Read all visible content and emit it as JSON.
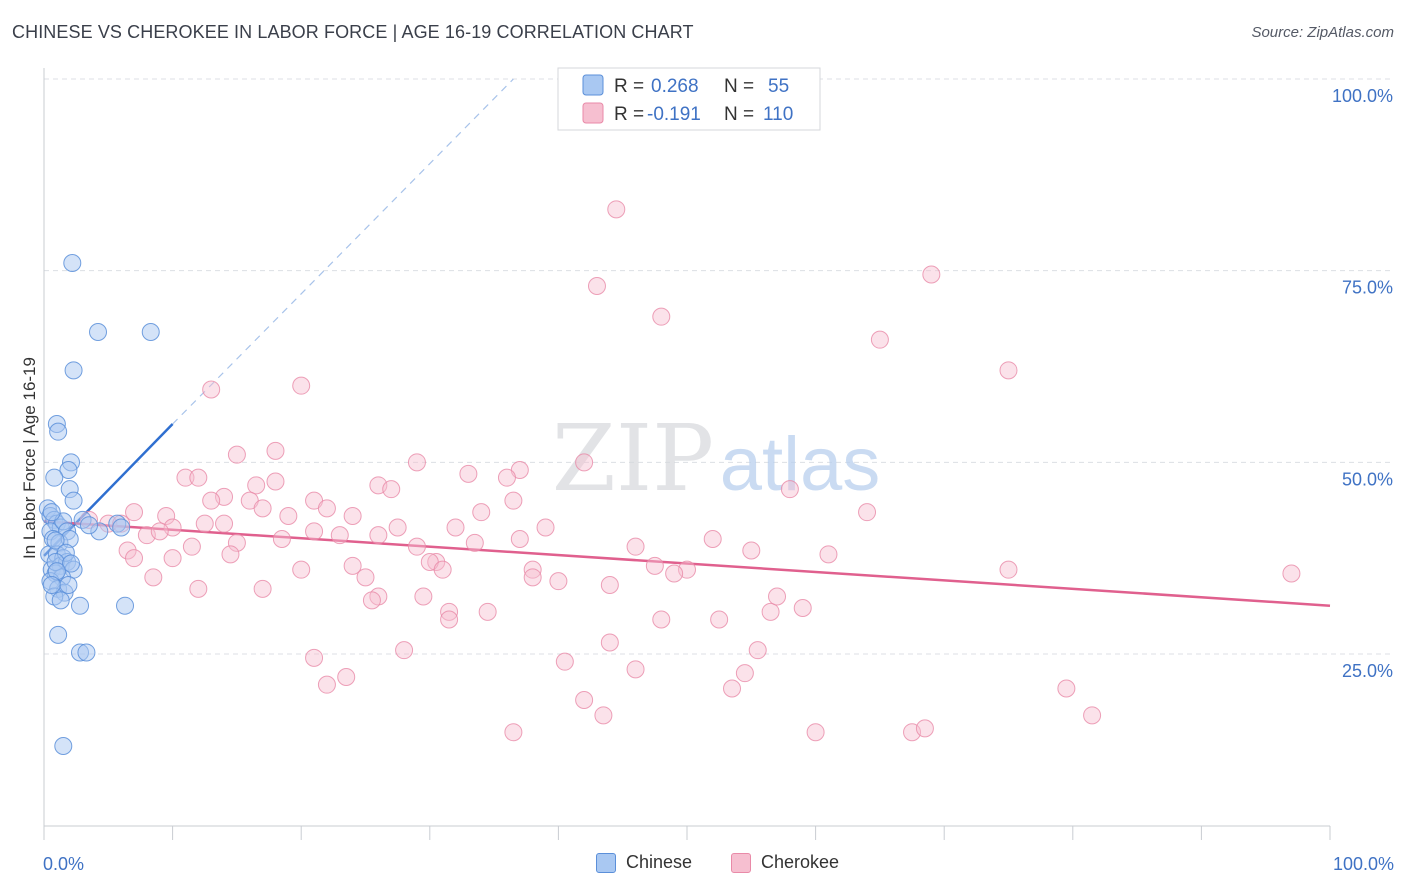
{
  "header": {
    "title": "CHINESE VS CHEROKEE IN LABOR FORCE | AGE 16-19 CORRELATION CHART",
    "source": "Source: ZipAtlas.com"
  },
  "watermark": {
    "zip": "ZIP",
    "atlas": "atlas"
  },
  "colors": {
    "chinese_fill": "#a9c8f2",
    "chinese_stroke": "#5b8fd9",
    "chinese_line": "#2f6fd0",
    "cherokee_fill": "#f6bfd0",
    "cherokee_stroke": "#e98aa8",
    "cherokee_line": "#e0608e",
    "axis_label": "#3f72c4"
  },
  "legend": {
    "chinese": {
      "r_label": "R = ",
      "r_value": "0.268",
      "n_label": "N = ",
      "n_value": "55"
    },
    "cherokee": {
      "r_label": "R = ",
      "r_value": "-0.191",
      "n_label": "N = ",
      "n_value": "110"
    }
  },
  "chart_data": {
    "type": "scatter",
    "title": "CHINESE VS CHEROKEE IN LABOR FORCE | AGE 16-19 CORRELATION CHART",
    "xlabel": "",
    "ylabel": "In Labor Force | Age 16-19",
    "xlim": [
      0,
      100
    ],
    "ylim": [
      0,
      105
    ],
    "x_tick_labels": [
      "0.0%",
      "100.0%"
    ],
    "y_ticks": [
      25,
      50,
      75,
      100
    ],
    "y_tick_labels": [
      "25.0%",
      "50.0%",
      "75.0%",
      "100.0%"
    ],
    "grid": true,
    "legend_position": "top-center",
    "series": [
      {
        "name": "Chinese",
        "r": 0.268,
        "n": 55,
        "trend": {
          "x": [
            0.0,
            10.0
          ],
          "y": [
            37.8,
            55.0
          ],
          "dashed_to": [
            36.5,
            100.0
          ]
        },
        "points": [
          [
            0.3,
            44.0
          ],
          [
            0.5,
            43.0
          ],
          [
            0.8,
            42.5
          ],
          [
            1.0,
            42.0
          ],
          [
            1.3,
            41.5
          ],
          [
            0.5,
            41.0
          ],
          [
            1.5,
            42.3
          ],
          [
            1.8,
            41.0
          ],
          [
            0.7,
            40.0
          ],
          [
            1.2,
            39.5
          ],
          [
            2.0,
            40.0
          ],
          [
            0.4,
            38.0
          ],
          [
            1.0,
            38.0
          ],
          [
            1.5,
            37.5
          ],
          [
            0.6,
            36.0
          ],
          [
            1.3,
            36.5
          ],
          [
            1.8,
            37.0
          ],
          [
            2.3,
            36.0
          ],
          [
            0.9,
            35.5
          ],
          [
            1.4,
            35.0
          ],
          [
            0.5,
            34.5
          ],
          [
            1.1,
            33.5
          ],
          [
            1.6,
            33.0
          ],
          [
            1.9,
            34.0
          ],
          [
            0.8,
            32.5
          ],
          [
            1.3,
            32.0
          ],
          [
            2.8,
            31.3
          ],
          [
            6.3,
            31.3
          ],
          [
            1.1,
            27.5
          ],
          [
            2.8,
            25.2
          ],
          [
            3.3,
            25.2
          ],
          [
            1.5,
            13.0
          ],
          [
            2.2,
            76.0
          ],
          [
            4.2,
            67.0
          ],
          [
            8.3,
            67.0
          ],
          [
            2.3,
            62.0
          ],
          [
            1.0,
            55.0
          ],
          [
            1.1,
            54.0
          ],
          [
            2.1,
            50.0
          ],
          [
            1.9,
            49.0
          ],
          [
            0.8,
            48.0
          ],
          [
            2.0,
            46.5
          ],
          [
            2.3,
            45.0
          ],
          [
            0.6,
            43.5
          ],
          [
            3.0,
            42.5
          ],
          [
            5.7,
            42.0
          ],
          [
            6.0,
            41.5
          ],
          [
            4.3,
            41.0
          ],
          [
            3.5,
            41.8
          ],
          [
            0.9,
            39.8
          ],
          [
            1.7,
            38.2
          ],
          [
            0.9,
            37.0
          ],
          [
            2.1,
            36.8
          ],
          [
            1.0,
            35.8
          ],
          [
            0.6,
            34.0
          ]
        ]
      },
      {
        "name": "Cherokee",
        "r": -0.191,
        "n": 110,
        "trend": {
          "x": [
            0.0,
            100.0
          ],
          "y": [
            42.3,
            31.3
          ]
        },
        "points": [
          [
            44.5,
            83.0
          ],
          [
            43.0,
            73.0
          ],
          [
            48.0,
            69.0
          ],
          [
            69.0,
            74.5
          ],
          [
            65.0,
            66.0
          ],
          [
            75.0,
            62.0
          ],
          [
            20.0,
            60.0
          ],
          [
            13.0,
            59.5
          ],
          [
            18.0,
            51.5
          ],
          [
            15.0,
            51.0
          ],
          [
            29.0,
            50.0
          ],
          [
            42.0,
            50.0
          ],
          [
            37.0,
            49.0
          ],
          [
            33.0,
            48.5
          ],
          [
            36.0,
            48.0
          ],
          [
            11.0,
            48.0
          ],
          [
            12.0,
            48.0
          ],
          [
            16.5,
            47.0
          ],
          [
            18.0,
            47.5
          ],
          [
            26.0,
            47.0
          ],
          [
            27.0,
            46.5
          ],
          [
            58.0,
            46.5
          ],
          [
            14.0,
            45.5
          ],
          [
            13.0,
            45.0
          ],
          [
            16.0,
            45.0
          ],
          [
            21.0,
            45.0
          ],
          [
            36.5,
            45.0
          ],
          [
            17.0,
            44.0
          ],
          [
            22.0,
            44.0
          ],
          [
            7.0,
            43.5
          ],
          [
            9.5,
            43.0
          ],
          [
            19.0,
            43.0
          ],
          [
            24.0,
            43.0
          ],
          [
            64.0,
            43.5
          ],
          [
            3.5,
            42.5
          ],
          [
            5.0,
            42.0
          ],
          [
            6.0,
            42.0
          ],
          [
            14.0,
            42.0
          ],
          [
            10.0,
            41.5
          ],
          [
            21.0,
            41.0
          ],
          [
            32.0,
            41.5
          ],
          [
            39.0,
            41.5
          ],
          [
            8.0,
            40.5
          ],
          [
            23.0,
            40.5
          ],
          [
            26.0,
            40.5
          ],
          [
            37.0,
            40.0
          ],
          [
            52.0,
            40.0
          ],
          [
            15.0,
            39.5
          ],
          [
            29.0,
            39.0
          ],
          [
            6.5,
            38.5
          ],
          [
            14.5,
            38.0
          ],
          [
            7.0,
            37.5
          ],
          [
            10.0,
            37.5
          ],
          [
            30.5,
            37.0
          ],
          [
            30.0,
            37.0
          ],
          [
            24.0,
            36.5
          ],
          [
            47.5,
            36.5
          ],
          [
            31.0,
            36.0
          ],
          [
            20.0,
            36.0
          ],
          [
            38.0,
            36.0
          ],
          [
            50.0,
            36.0
          ],
          [
            49.0,
            35.5
          ],
          [
            75.0,
            36.0
          ],
          [
            97.0,
            35.5
          ],
          [
            8.5,
            35.0
          ],
          [
            25.0,
            35.0
          ],
          [
            38.0,
            35.0
          ],
          [
            44.0,
            34.0
          ],
          [
            12.0,
            33.5
          ],
          [
            17.0,
            33.5
          ],
          [
            26.0,
            32.5
          ],
          [
            25.5,
            32.0
          ],
          [
            29.5,
            32.5
          ],
          [
            59.0,
            31.0
          ],
          [
            56.5,
            30.5
          ],
          [
            31.5,
            30.5
          ],
          [
            34.5,
            30.5
          ],
          [
            31.5,
            29.5
          ],
          [
            48.0,
            29.5
          ],
          [
            52.5,
            29.5
          ],
          [
            44.0,
            26.5
          ],
          [
            55.5,
            25.5
          ],
          [
            28.0,
            25.5
          ],
          [
            21.0,
            24.5
          ],
          [
            40.5,
            24.0
          ],
          [
            46.0,
            23.0
          ],
          [
            54.5,
            22.5
          ],
          [
            23.5,
            22.0
          ],
          [
            22.0,
            21.0
          ],
          [
            53.5,
            20.5
          ],
          [
            79.5,
            20.5
          ],
          [
            42.0,
            19.0
          ],
          [
            43.5,
            17.0
          ],
          [
            81.5,
            17.0
          ],
          [
            36.5,
            14.8
          ],
          [
            60.0,
            14.8
          ],
          [
            67.5,
            14.8
          ],
          [
            68.5,
            15.3
          ],
          [
            12.5,
            42.0
          ],
          [
            18.5,
            40.0
          ],
          [
            34.0,
            43.5
          ],
          [
            46.0,
            39.0
          ],
          [
            55.0,
            38.5
          ],
          [
            61.0,
            38.0
          ],
          [
            9.0,
            41.0
          ],
          [
            27.5,
            41.5
          ],
          [
            33.5,
            39.5
          ],
          [
            40.0,
            34.5
          ],
          [
            57.0,
            32.5
          ],
          [
            11.5,
            39.0
          ]
        ]
      }
    ]
  }
}
